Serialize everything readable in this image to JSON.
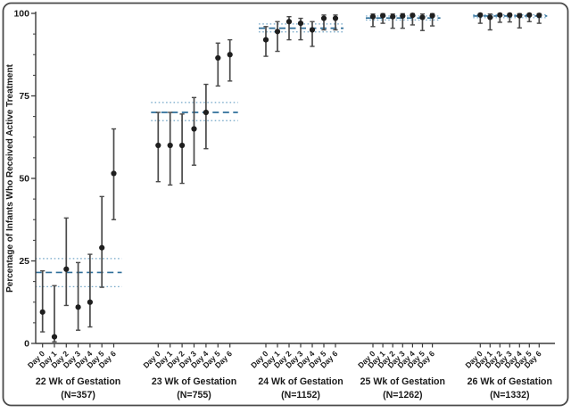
{
  "figure": {
    "ylabel": "Percentage of Infants Who Received Active Treatment"
  },
  "chart_data": {
    "type": "scatter",
    "title": "",
    "xlabel": "",
    "ylabel": "Percentage of Infants Who Received Active Treatment",
    "ylim": [
      0,
      100
    ],
    "yticks": [
      0,
      25,
      50,
      75,
      100
    ],
    "y_minor_tick_step": 6.25,
    "grid": false,
    "legend_position": "none",
    "point_style": "filled circle with 95% CI error bars",
    "reference_lines": "per-group horizontal dashed line = overall rate; dotted lines = 95% CI of overall rate",
    "day_labels": [
      "Day 0",
      "Day 1",
      "Day 2",
      "Day 3",
      "Day 4",
      "Day 5",
      "Day 6"
    ],
    "groups": [
      {
        "label": "22 Wk of Gestation",
        "n": "(N=357)",
        "overall": {
          "mean": 21.5,
          "ci_low": 17.2,
          "ci_high": 25.7
        },
        "points": [
          {
            "day": "Day 0",
            "value": 9.5,
            "lo": 3.5,
            "hi": 22.0
          },
          {
            "day": "Day 1",
            "value": 2.0,
            "lo": 0.5,
            "hi": 17.5
          },
          {
            "day": "Day 2",
            "value": 22.5,
            "lo": 11.5,
            "hi": 38.0
          },
          {
            "day": "Day 3",
            "value": 11.0,
            "lo": 4.0,
            "hi": 24.5
          },
          {
            "day": "Day 4",
            "value": 12.5,
            "lo": 5.0,
            "hi": 27.0
          },
          {
            "day": "Day 5",
            "value": 29.0,
            "lo": 17.0,
            "hi": 44.5
          },
          {
            "day": "Day 6",
            "value": 51.5,
            "lo": 37.5,
            "hi": 65.0
          }
        ]
      },
      {
        "label": "23 Wk of Gestation",
        "n": "(N=755)",
        "overall": {
          "mean": 70.0,
          "ci_low": 67.5,
          "ci_high": 73.0
        },
        "points": [
          {
            "day": "Day 0",
            "value": 60.0,
            "lo": 49.0,
            "hi": 70.0
          },
          {
            "day": "Day 1",
            "value": 60.0,
            "lo": 48.0,
            "hi": 70.0
          },
          {
            "day": "Day 2",
            "value": 60.0,
            "lo": 48.5,
            "hi": 69.5
          },
          {
            "day": "Day 3",
            "value": 65.0,
            "lo": 54.0,
            "hi": 74.5
          },
          {
            "day": "Day 4",
            "value": 70.0,
            "lo": 59.0,
            "hi": 78.5
          },
          {
            "day": "Day 5",
            "value": 86.5,
            "lo": 78.0,
            "hi": 91.0
          },
          {
            "day": "Day 6",
            "value": 87.5,
            "lo": 79.5,
            "hi": 92.0
          }
        ]
      },
      {
        "label": "24 Wk of Gestation",
        "n": "(N=1152)",
        "overall": {
          "mean": 95.5,
          "ci_low": 94.4,
          "ci_high": 96.8
        },
        "points": [
          {
            "day": "Day 0",
            "value": 92.0,
            "lo": 87.0,
            "hi": 96.0
          },
          {
            "day": "Day 1",
            "value": 94.5,
            "lo": 88.5,
            "hi": 97.5
          },
          {
            "day": "Day 2",
            "value": 97.5,
            "lo": 92.0,
            "hi": 99.0
          },
          {
            "day": "Day 3",
            "value": 97.0,
            "lo": 92.0,
            "hi": 98.5
          },
          {
            "day": "Day 4",
            "value": 95.0,
            "lo": 90.0,
            "hi": 97.5
          },
          {
            "day": "Day 5",
            "value": 98.5,
            "lo": 95.0,
            "hi": 99.5
          },
          {
            "day": "Day 6",
            "value": 98.5,
            "lo": 95.0,
            "hi": 99.5
          }
        ]
      },
      {
        "label": "25 Wk of Gestation",
        "n": "(N=1262)",
        "overall": {
          "mean": 98.6,
          "ci_low": 98.0,
          "ci_high": 99.2
        },
        "points": [
          {
            "day": "Day 0",
            "value": 99.0,
            "lo": 96.0,
            "hi": 99.8
          },
          {
            "day": "Day 1",
            "value": 99.3,
            "lo": 97.0,
            "hi": 99.9
          },
          {
            "day": "Day 2",
            "value": 99.0,
            "lo": 95.5,
            "hi": 99.8
          },
          {
            "day": "Day 3",
            "value": 99.2,
            "lo": 95.5,
            "hi": 99.9
          },
          {
            "day": "Day 4",
            "value": 99.4,
            "lo": 96.5,
            "hi": 99.9
          },
          {
            "day": "Day 5",
            "value": 98.8,
            "lo": 94.8,
            "hi": 99.8
          },
          {
            "day": "Day 6",
            "value": 99.3,
            "lo": 96.2,
            "hi": 99.9
          }
        ]
      },
      {
        "label": "26 Wk of Gestation",
        "n": "(N=1332)",
        "overall": {
          "mean": 99.2,
          "ci_low": 98.7,
          "ci_high": 99.6
        },
        "points": [
          {
            "day": "Day 0",
            "value": 99.5,
            "lo": 97.0,
            "hi": 99.9
          },
          {
            "day": "Day 1",
            "value": 98.8,
            "lo": 95.0,
            "hi": 99.8
          },
          {
            "day": "Day 2",
            "value": 99.5,
            "lo": 97.3,
            "hi": 99.9
          },
          {
            "day": "Day 3",
            "value": 99.5,
            "lo": 97.4,
            "hi": 99.9
          },
          {
            "day": "Day 4",
            "value": 99.3,
            "lo": 95.6,
            "hi": 99.9
          },
          {
            "day": "Day 5",
            "value": 99.5,
            "lo": 97.5,
            "hi": 99.9
          },
          {
            "day": "Day 6",
            "value": 99.4,
            "lo": 97.0,
            "hi": 99.9
          }
        ]
      }
    ],
    "colors": {
      "point": "#1f1f1f",
      "error_bar": "#4a4a4a",
      "overall_line": "#2f6f99",
      "ci_line": "#74a7c8",
      "axis": "#3a3a3a",
      "text": "#1a1a1a",
      "border": "#4a4a4a",
      "background": "#ffffff"
    }
  }
}
